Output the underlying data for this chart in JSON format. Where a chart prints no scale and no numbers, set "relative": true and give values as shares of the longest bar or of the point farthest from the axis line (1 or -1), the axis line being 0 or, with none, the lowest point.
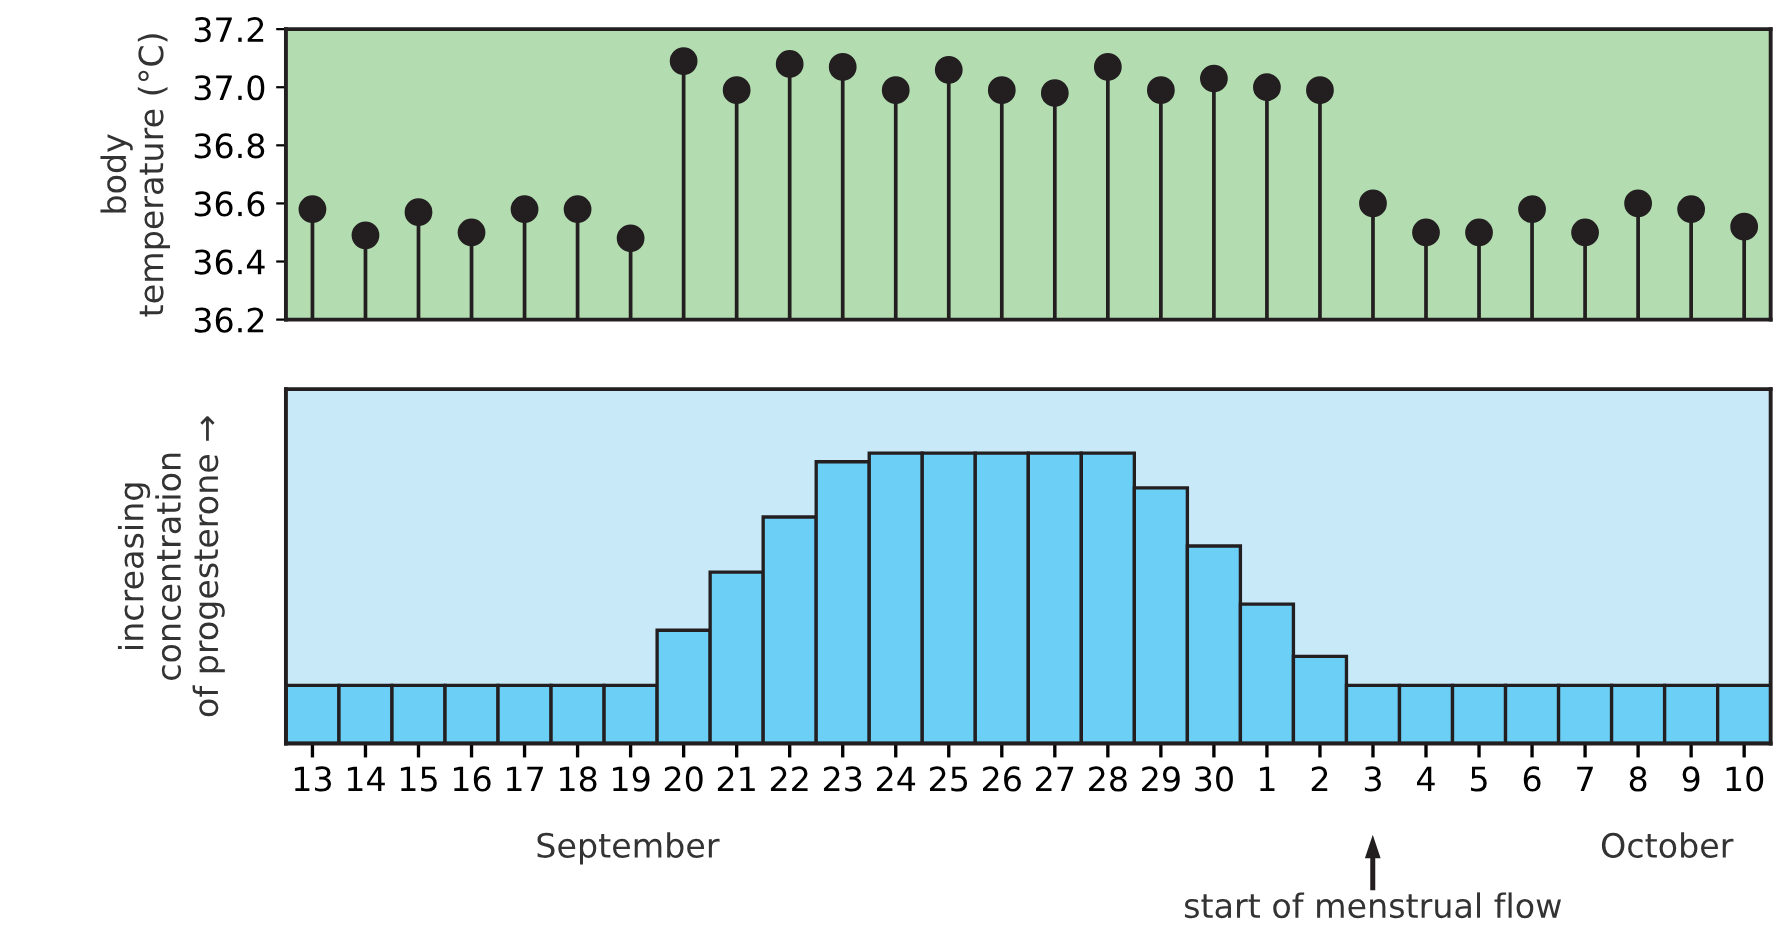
{
  "chart_data": [
    {
      "type": "lollipop",
      "ylabel": "body\ntemperature (°C)",
      "categories": [
        "13",
        "14",
        "15",
        "16",
        "17",
        "18",
        "19",
        "20",
        "21",
        "22",
        "23",
        "24",
        "25",
        "26",
        "27",
        "28",
        "29",
        "30",
        "1",
        "2",
        "3",
        "4",
        "5",
        "6",
        "7",
        "8",
        "9",
        "10"
      ],
      "series": [
        {
          "color": "#231f20",
          "values": [
            36.58,
            36.49,
            36.57,
            36.5,
            36.58,
            36.58,
            36.48,
            37.09,
            36.99,
            37.08,
            37.07,
            36.99,
            37.06,
            36.99,
            36.98,
            37.07,
            36.99,
            37.03,
            37.0,
            36.99,
            36.6,
            36.5,
            36.5,
            36.58,
            36.5,
            36.6,
            36.58,
            36.52
          ]
        }
      ],
      "ylim": [
        36.2,
        37.2
      ],
      "yticks": [
        {
          "value": 36.2,
          "label": "36.2"
        },
        {
          "value": 36.4,
          "label": "36.4"
        },
        {
          "value": 36.6,
          "label": "36.6"
        },
        {
          "value": 36.8,
          "label": "36.8"
        },
        {
          "value": 37.0,
          "label": "37.0"
        },
        {
          "value": 37.2,
          "label": "37.2"
        }
      ],
      "tick_labels": "y",
      "marker": "circle"
    },
    {
      "type": "bar",
      "relative": true,
      "ylabel": "increasing\nconcentration\nof progesterone →",
      "categories": [
        "13",
        "14",
        "15",
        "16",
        "17",
        "18",
        "19",
        "20",
        "21",
        "22",
        "23",
        "24",
        "25",
        "26",
        "27",
        "28",
        "29",
        "30",
        "1",
        "2",
        "3",
        "4",
        "5",
        "6",
        "7",
        "8",
        "9",
        "10"
      ],
      "series": [
        {
          "color": "#6ccff6",
          "values": [
            0.2,
            0.2,
            0.2,
            0.2,
            0.2,
            0.2,
            0.2,
            0.39,
            0.59,
            0.78,
            0.97,
            1.0,
            1.0,
            1.0,
            1.0,
            1.0,
            0.88,
            0.68,
            0.48,
            0.3,
            0.2,
            0.2,
            0.2,
            0.2,
            0.2,
            0.2,
            0.2,
            0.2
          ]
        }
      ],
      "annotations": [
        "September",
        "October",
        "start of menstrual flow"
      ]
    }
  ]
}
